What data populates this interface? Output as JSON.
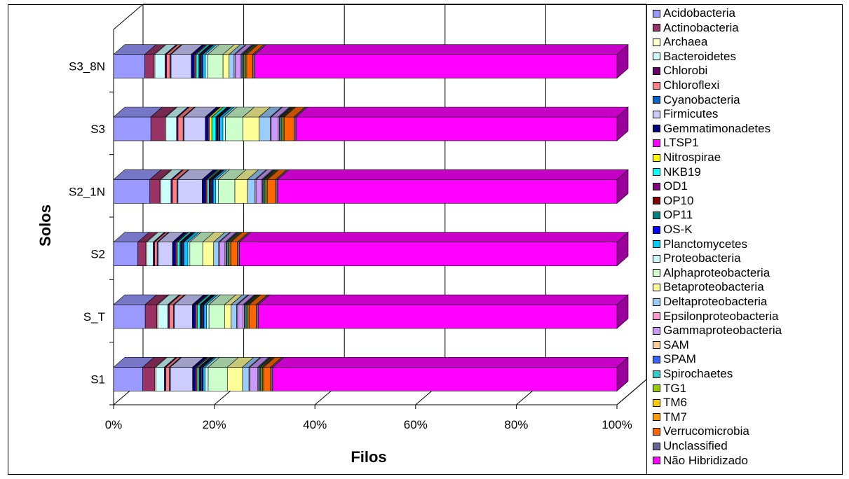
{
  "chart_data": {
    "type": "bar",
    "orientation": "horizontal",
    "stacked": "percent",
    "xlabel": "Filos",
    "ylabel": "Solos",
    "xlim": [
      0,
      100
    ],
    "xticks": [
      "0%",
      "20%",
      "40%",
      "60%",
      "80%",
      "100%"
    ],
    "legend_position": "right",
    "categories": [
      "S1",
      "S_T",
      "S2",
      "S2_1N",
      "S3",
      "S3_8N"
    ],
    "series": [
      {
        "name": "Acidobacteria",
        "color": "#9999FF",
        "values": [
          5.8,
          6.3,
          4.9,
          7.2,
          7.4,
          6.2
        ]
      },
      {
        "name": "Actinobacteria",
        "color": "#993366",
        "values": [
          2.4,
          2.3,
          1.6,
          2.0,
          2.8,
          1.8
        ]
      },
      {
        "name": "Archaea",
        "color": "#FFFFCC",
        "values": [
          0.2,
          0.2,
          0.2,
          0.2,
          0.2,
          0.2
        ]
      },
      {
        "name": "Bacteroidetes",
        "color": "#CCFFFF",
        "values": [
          1.7,
          2.0,
          1.3,
          2.0,
          2.1,
          2.0
        ]
      },
      {
        "name": "Chlorobi",
        "color": "#660066",
        "values": [
          0.3,
          0.3,
          0.3,
          0.3,
          0.3,
          0.3
        ]
      },
      {
        "name": "Chloroflexi",
        "color": "#FF8080",
        "values": [
          0.7,
          0.8,
          0.5,
          0.9,
          1.0,
          0.7
        ]
      },
      {
        "name": "Cyanobacteria",
        "color": "#0066CC",
        "values": [
          0.2,
          0.2,
          0.2,
          0.2,
          0.2,
          0.2
        ]
      },
      {
        "name": "Firmicutes",
        "color": "#CCCCFF",
        "values": [
          4.4,
          3.6,
          2.9,
          4.8,
          4.2,
          4.0
        ]
      },
      {
        "name": "Gemmatimonadetes",
        "color": "#000080",
        "values": [
          0.6,
          0.6,
          0.6,
          0.7,
          0.6,
          0.6
        ]
      },
      {
        "name": "LTSP1",
        "color": "#FF00FF",
        "values": [
          0.2,
          0.2,
          0.2,
          0.2,
          0.2,
          0.2
        ]
      },
      {
        "name": "Nitrospirae",
        "color": "#FFFF00",
        "values": [
          0.2,
          0.2,
          0.2,
          0.2,
          0.5,
          0.2
        ]
      },
      {
        "name": "NKB19",
        "color": "#00FFFF",
        "values": [
          0.3,
          0.5,
          0.5,
          0.3,
          0.8,
          0.5
        ]
      },
      {
        "name": "OD1",
        "color": "#800080",
        "values": [
          0.2,
          0.2,
          0.2,
          0.2,
          0.2,
          0.2
        ]
      },
      {
        "name": "OP10",
        "color": "#800000",
        "values": [
          0.2,
          0.2,
          0.2,
          0.2,
          0.2,
          0.2
        ]
      },
      {
        "name": "OP11",
        "color": "#008080",
        "values": [
          0.2,
          0.2,
          0.2,
          0.2,
          0.2,
          0.2
        ]
      },
      {
        "name": "OS-K",
        "color": "#0000FF",
        "values": [
          0.2,
          0.2,
          0.2,
          0.2,
          0.2,
          0.2
        ]
      },
      {
        "name": "Planctomycetes",
        "color": "#00CCFF",
        "values": [
          0.4,
          0.5,
          0.8,
          0.5,
          0.6,
          0.5
        ]
      },
      {
        "name": "Proteobacteria",
        "color": "#CCFFFF",
        "values": [
          0.6,
          0.5,
          0.4,
          0.5,
          0.5,
          0.5
        ]
      },
      {
        "name": "Alphaproteobacteria",
        "color": "#CCFFCC",
        "values": [
          3.8,
          3.1,
          2.6,
          3.3,
          3.5,
          3.0
        ]
      },
      {
        "name": "Betaproteobacteria",
        "color": "#FFFF99",
        "values": [
          3.0,
          1.3,
          2.2,
          2.5,
          3.2,
          1.2
        ]
      },
      {
        "name": "Deltaproteobacteria",
        "color": "#99CCFF",
        "values": [
          1.3,
          1.1,
          1.0,
          1.5,
          2.2,
          1.0
        ]
      },
      {
        "name": "Epsilonproteobacteria",
        "color": "#FF99CC",
        "values": [
          0.2,
          0.2,
          0.2,
          0.2,
          0.2,
          0.2
        ]
      },
      {
        "name": "Gammaproteobacteria",
        "color": "#CC99FF",
        "values": [
          1.5,
          1.1,
          1.1,
          1.1,
          1.4,
          1.1
        ]
      },
      {
        "name": "SAM",
        "color": "#FFCC99",
        "values": [
          0.2,
          0.2,
          0.2,
          0.2,
          0.2,
          0.2
        ]
      },
      {
        "name": "SPAM",
        "color": "#3366FF",
        "values": [
          0.2,
          0.2,
          0.2,
          0.2,
          0.2,
          0.2
        ]
      },
      {
        "name": "Spirochaetes",
        "color": "#33CCCC",
        "values": [
          0.2,
          0.2,
          0.2,
          0.2,
          0.2,
          0.2
        ]
      },
      {
        "name": "TG1",
        "color": "#99CC00",
        "values": [
          0.2,
          0.2,
          0.2,
          0.2,
          0.2,
          0.2
        ]
      },
      {
        "name": "TM6",
        "color": "#FFCC00",
        "values": [
          0.2,
          0.2,
          0.2,
          0.2,
          0.2,
          0.2
        ]
      },
      {
        "name": "TM7",
        "color": "#FF9900",
        "values": [
          0.2,
          0.2,
          0.2,
          0.2,
          0.2,
          0.2
        ]
      },
      {
        "name": "Verrucomicrobia",
        "color": "#FF6600",
        "values": [
          1.4,
          1.4,
          1.3,
          1.6,
          1.9,
          1.2
        ]
      },
      {
        "name": "Unclassified",
        "color": "#666699",
        "values": [
          0.4,
          0.4,
          0.4,
          0.4,
          0.4,
          0.4
        ]
      },
      {
        "name": "Não Hibridizado",
        "color": "#FF00FF",
        "values": [
          68.4,
          71.4,
          76.2,
          67.4,
          63.7,
          71.8
        ]
      }
    ]
  }
}
